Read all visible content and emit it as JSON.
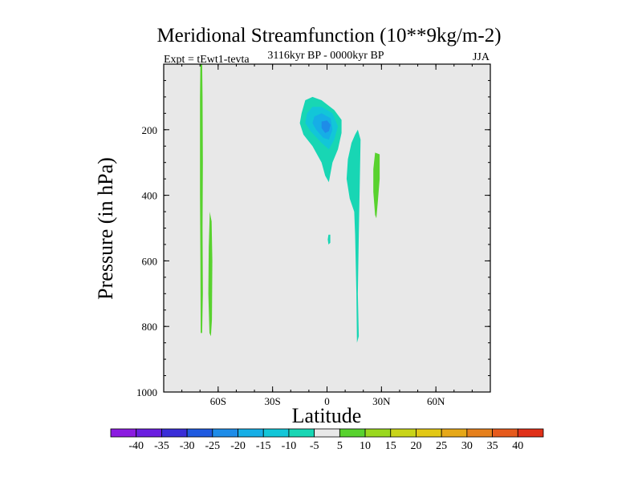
{
  "chart_data": {
    "type": "contour",
    "title": "Meridional Streamfunction (10**9kg/m-2)",
    "subtitle": "3116kyr BP - 0000kyr BP",
    "left_label": "Expt = tEwt1-tevta",
    "right_label": "JJA",
    "xlabel": "Latitude",
    "ylabel": "Pressure (in hPa)",
    "xlim": [
      -90,
      90
    ],
    "ylim": [
      1000,
      0
    ],
    "x_ticks": [
      {
        "value": -60,
        "label": "60S"
      },
      {
        "value": -30,
        "label": "30S"
      },
      {
        "value": 0,
        "label": "0"
      },
      {
        "value": 30,
        "label": "30N"
      },
      {
        "value": 60,
        "label": "60N"
      }
    ],
    "y_ticks": [
      {
        "value": 200,
        "label": "200"
      },
      {
        "value": 400,
        "label": "400"
      },
      {
        "value": 600,
        "label": "600"
      },
      {
        "value": 800,
        "label": "800"
      },
      {
        "value": 1000,
        "label": "1000"
      }
    ],
    "colorbar": {
      "labels": [
        "-40",
        "-35",
        "-30",
        "-25",
        "-20",
        "-15",
        "-10",
        "-5",
        "5",
        "10",
        "15",
        "20",
        "25",
        "30",
        "35",
        "40"
      ],
      "colors": [
        "#8b1be0",
        "#6a1ee0",
        "#3a2ed8",
        "#1f5ae0",
        "#1e8ce8",
        "#16aee6",
        "#12c6d8",
        "#18d6b4",
        "#e8e8e8",
        "#58d22e",
        "#9ad81e",
        "#c8d418",
        "#e2c814",
        "#e6a818",
        "#e6801c",
        "#e65a1c",
        "#e03018"
      ]
    },
    "regions": [
      {
        "name": "sh-vertical-band-a",
        "value": 10,
        "color": "#58d22e",
        "points": [
          [
            -69.8,
            0
          ],
          [
            -68.8,
            0
          ],
          [
            -68.6,
            100
          ],
          [
            -68.4,
            300
          ],
          [
            -68.6,
            500
          ],
          [
            -68.4,
            700
          ],
          [
            -68.8,
            820
          ],
          [
            -69.6,
            820
          ],
          [
            -69.8,
            600
          ],
          [
            -70.0,
            400
          ],
          [
            -70.0,
            100
          ]
        ]
      },
      {
        "name": "sh-vertical-band-b",
        "value": 10,
        "color": "#58d22e",
        "points": [
          [
            -64.6,
            450
          ],
          [
            -63.6,
            480
          ],
          [
            -63.2,
            600
          ],
          [
            -63.4,
            780
          ],
          [
            -64.0,
            830
          ],
          [
            -64.8,
            820
          ],
          [
            -65.4,
            700
          ],
          [
            -65.2,
            560
          ]
        ]
      },
      {
        "name": "upper-cell-outer",
        "value": -5,
        "color": "#18d6b4",
        "points": [
          [
            -14,
            150
          ],
          [
            -12,
            110
          ],
          [
            -8,
            100
          ],
          [
            -3,
            110
          ],
          [
            4,
            140
          ],
          [
            8,
            170
          ],
          [
            8,
            210
          ],
          [
            6,
            260
          ],
          [
            3,
            300
          ],
          [
            1,
            360
          ],
          [
            -1,
            340
          ],
          [
            -3,
            300
          ],
          [
            -8,
            250
          ],
          [
            -13,
            215
          ],
          [
            -15,
            180
          ]
        ]
      },
      {
        "name": "upper-cell-mid",
        "value": -10,
        "color": "#12c6d8",
        "points": [
          [
            -11,
            150
          ],
          [
            -8,
            130
          ],
          [
            -3,
            130
          ],
          [
            3,
            150
          ],
          [
            6,
            190
          ],
          [
            4,
            230
          ],
          [
            1,
            260
          ],
          [
            -3,
            240
          ],
          [
            -9,
            205
          ],
          [
            -12,
            180
          ]
        ]
      },
      {
        "name": "upper-cell-inner",
        "value": -15,
        "color": "#16aee6",
        "points": [
          [
            -7,
            160
          ],
          [
            -3,
            150
          ],
          [
            2,
            165
          ],
          [
            3,
            200
          ],
          [
            1,
            230
          ],
          [
            -2,
            225
          ],
          [
            -6,
            200
          ],
          [
            -8,
            180
          ]
        ]
      },
      {
        "name": "upper-cell-core",
        "value": -20,
        "color": "#1e8ce8",
        "points": [
          [
            -3,
            175
          ],
          [
            0,
            172
          ],
          [
            2,
            185
          ],
          [
            1,
            205
          ],
          [
            -1,
            210
          ],
          [
            -3,
            195
          ]
        ]
      },
      {
        "name": "nh-cell-column",
        "value": -5,
        "color": "#18d6b4",
        "points": [
          [
            17,
            200
          ],
          [
            18.5,
            230
          ],
          [
            18,
            380
          ],
          [
            17.5,
            520
          ],
          [
            17,
            700
          ],
          [
            17.5,
            830
          ],
          [
            16.5,
            850
          ],
          [
            16.2,
            700
          ],
          [
            15.5,
            520
          ],
          [
            15,
            450
          ],
          [
            12.5,
            410
          ],
          [
            10.8,
            350
          ],
          [
            11.5,
            290
          ],
          [
            13.5,
            240
          ],
          [
            15.5,
            215
          ]
        ]
      },
      {
        "name": "equator-speck",
        "value": -5,
        "color": "#18d6b4",
        "points": [
          [
            0.8,
            520
          ],
          [
            1.8,
            520
          ],
          [
            1.8,
            545
          ],
          [
            0.8,
            550
          ],
          [
            0.4,
            535
          ]
        ]
      },
      {
        "name": "nh-positive-band",
        "value": 10,
        "color": "#58d22e",
        "points": [
          [
            26.5,
            270
          ],
          [
            29,
            275
          ],
          [
            29,
            350
          ],
          [
            28,
            420
          ],
          [
            27.2,
            470
          ],
          [
            26.5,
            460
          ],
          [
            25.5,
            390
          ],
          [
            25.5,
            320
          ]
        ]
      }
    ]
  }
}
